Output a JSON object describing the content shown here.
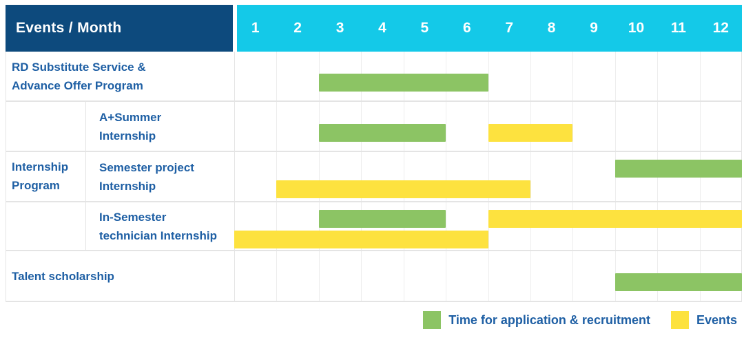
{
  "header": {
    "title": "Events / Month",
    "months": [
      "1",
      "2",
      "3",
      "4",
      "5",
      "6",
      "7",
      "8",
      "9",
      "10",
      "11",
      "12"
    ]
  },
  "colors": {
    "navy": "#0D4A7D",
    "cyan": "#14C9E8",
    "green": "#8CC464",
    "yellow": "#FDE23F",
    "text_blue": "#1E5FA4",
    "grid": "#EDEDED",
    "separator": "#E4E4E4"
  },
  "legend": {
    "items": [
      {
        "label": "Time for application & recruitment",
        "series": "application",
        "color": "#8CC464"
      },
      {
        "label": "Events",
        "series": "events",
        "color": "#FDE23F"
      }
    ]
  },
  "chart_data": {
    "type": "bar",
    "subtype": "gantt-schedule",
    "title": "Events / Month",
    "x_axis": {
      "label": "Month",
      "categories": [
        1,
        2,
        3,
        4,
        5,
        6,
        7,
        8,
        9,
        10,
        11,
        12
      ],
      "range": [
        1,
        12
      ]
    },
    "legend_position": "bottom-right",
    "grid": true,
    "series_legend": [
      {
        "name": "Time for application & recruitment",
        "color": "#8CC464"
      },
      {
        "name": "Events",
        "color": "#FDE23F"
      }
    ],
    "rows": [
      {
        "group": "",
        "label": "RD Substitute Service & Advance Offer Program",
        "label_lines": [
          "RD Substitute Service &",
          "Advance Offer Program"
        ],
        "bars": [
          {
            "series": "application",
            "start_month": 3,
            "end_month": 6,
            "lane": "single"
          }
        ]
      },
      {
        "group": "Internship Program",
        "label": "A+Summer Internship",
        "label_lines": [
          "A+Summer",
          "Internship"
        ],
        "bars": [
          {
            "series": "application",
            "start_month": 3,
            "end_month": 5,
            "lane": "single"
          },
          {
            "series": "events",
            "start_month": 7,
            "end_month": 8,
            "lane": "single"
          }
        ]
      },
      {
        "group": "Internship Program",
        "label": "Semester project Internship",
        "label_lines": [
          "Semester project",
          "Internship"
        ],
        "bars": [
          {
            "series": "application",
            "start_month": 10,
            "end_month": 12,
            "lane": "top"
          },
          {
            "series": "events",
            "start_month": 2,
            "end_month": 7,
            "lane": "bottom"
          }
        ]
      },
      {
        "group": "Internship Program",
        "label": "In-Semester technician Internship",
        "label_lines": [
          "In-Semester",
          "technician Internship"
        ],
        "bars": [
          {
            "series": "application",
            "start_month": 3,
            "end_month": 5,
            "lane": "top"
          },
          {
            "series": "events",
            "start_month": 7,
            "end_month": 12,
            "lane": "top"
          },
          {
            "series": "events",
            "start_month": 1,
            "end_month": 6,
            "lane": "bottom"
          }
        ]
      },
      {
        "group": "",
        "label": "Talent scholarship",
        "label_lines": [
          "Talent scholarship"
        ],
        "bars": [
          {
            "series": "application",
            "start_month": 10,
            "end_month": 12,
            "lane": "single"
          }
        ]
      }
    ],
    "group_label_lines": [
      "Internship",
      "Program"
    ]
  }
}
